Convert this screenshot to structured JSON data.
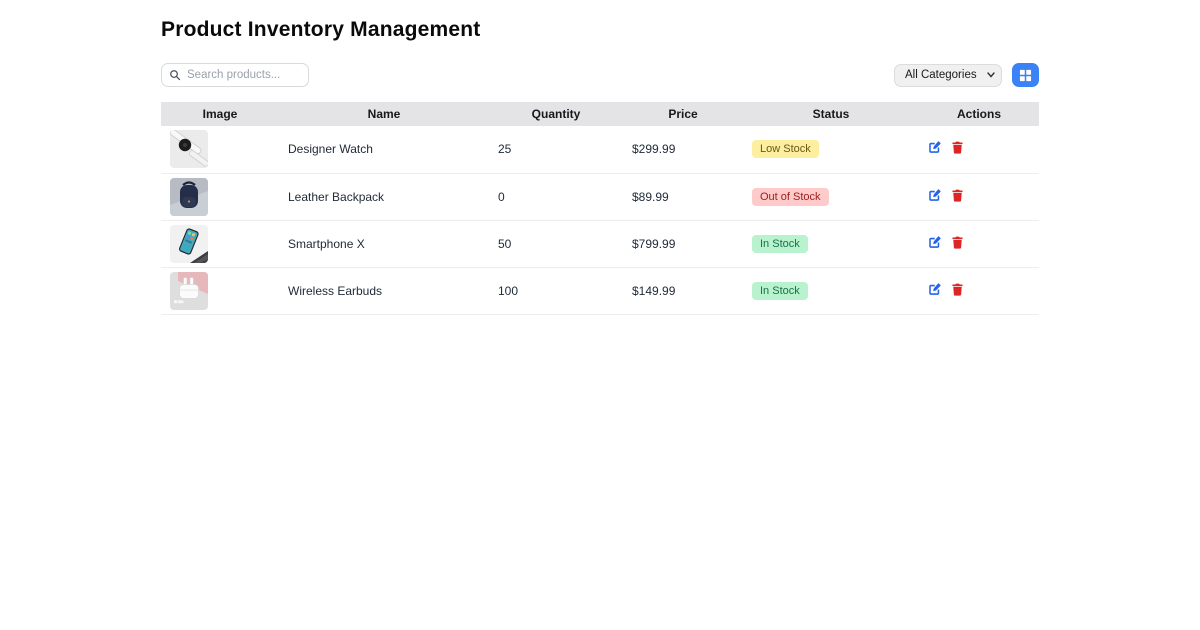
{
  "page": {
    "title": "Product Inventory Management"
  },
  "toolbar": {
    "search_placeholder": "Search products...",
    "category_filter_selected": "All Categories",
    "view_toggle_icon": "grid-icon"
  },
  "table": {
    "columns": [
      "Image",
      "Name",
      "Quantity",
      "Price",
      "Status",
      "Actions"
    ]
  },
  "products": [
    {
      "name": "Designer Watch",
      "quantity": "25",
      "price": "$299.99",
      "status": "Low Stock",
      "status_type": "low",
      "image": "watch"
    },
    {
      "name": "Leather Backpack",
      "quantity": "0",
      "price": "$89.99",
      "status": "Out of Stock",
      "status_type": "out",
      "image": "backpack"
    },
    {
      "name": "Smartphone X",
      "quantity": "50",
      "price": "$799.99",
      "status": "In Stock",
      "status_type": "in",
      "image": "phone"
    },
    {
      "name": "Wireless Earbuds",
      "quantity": "100",
      "price": "$149.99",
      "status": "In Stock",
      "status_type": "in",
      "image": "earbuds"
    }
  ],
  "colors": {
    "accent_blue": "#3b82f6",
    "edit_icon_blue": "#2563eb",
    "delete_icon_red": "#dc2626",
    "header_bg": "#e4e4e7",
    "status_in_bg": "#b9f2ce",
    "status_in_text": "#177245",
    "status_low_bg": "#fcf0a0",
    "status_low_text": "#6b5618",
    "status_out_bg": "#fecaca",
    "status_out_text": "#9b1c1c"
  }
}
